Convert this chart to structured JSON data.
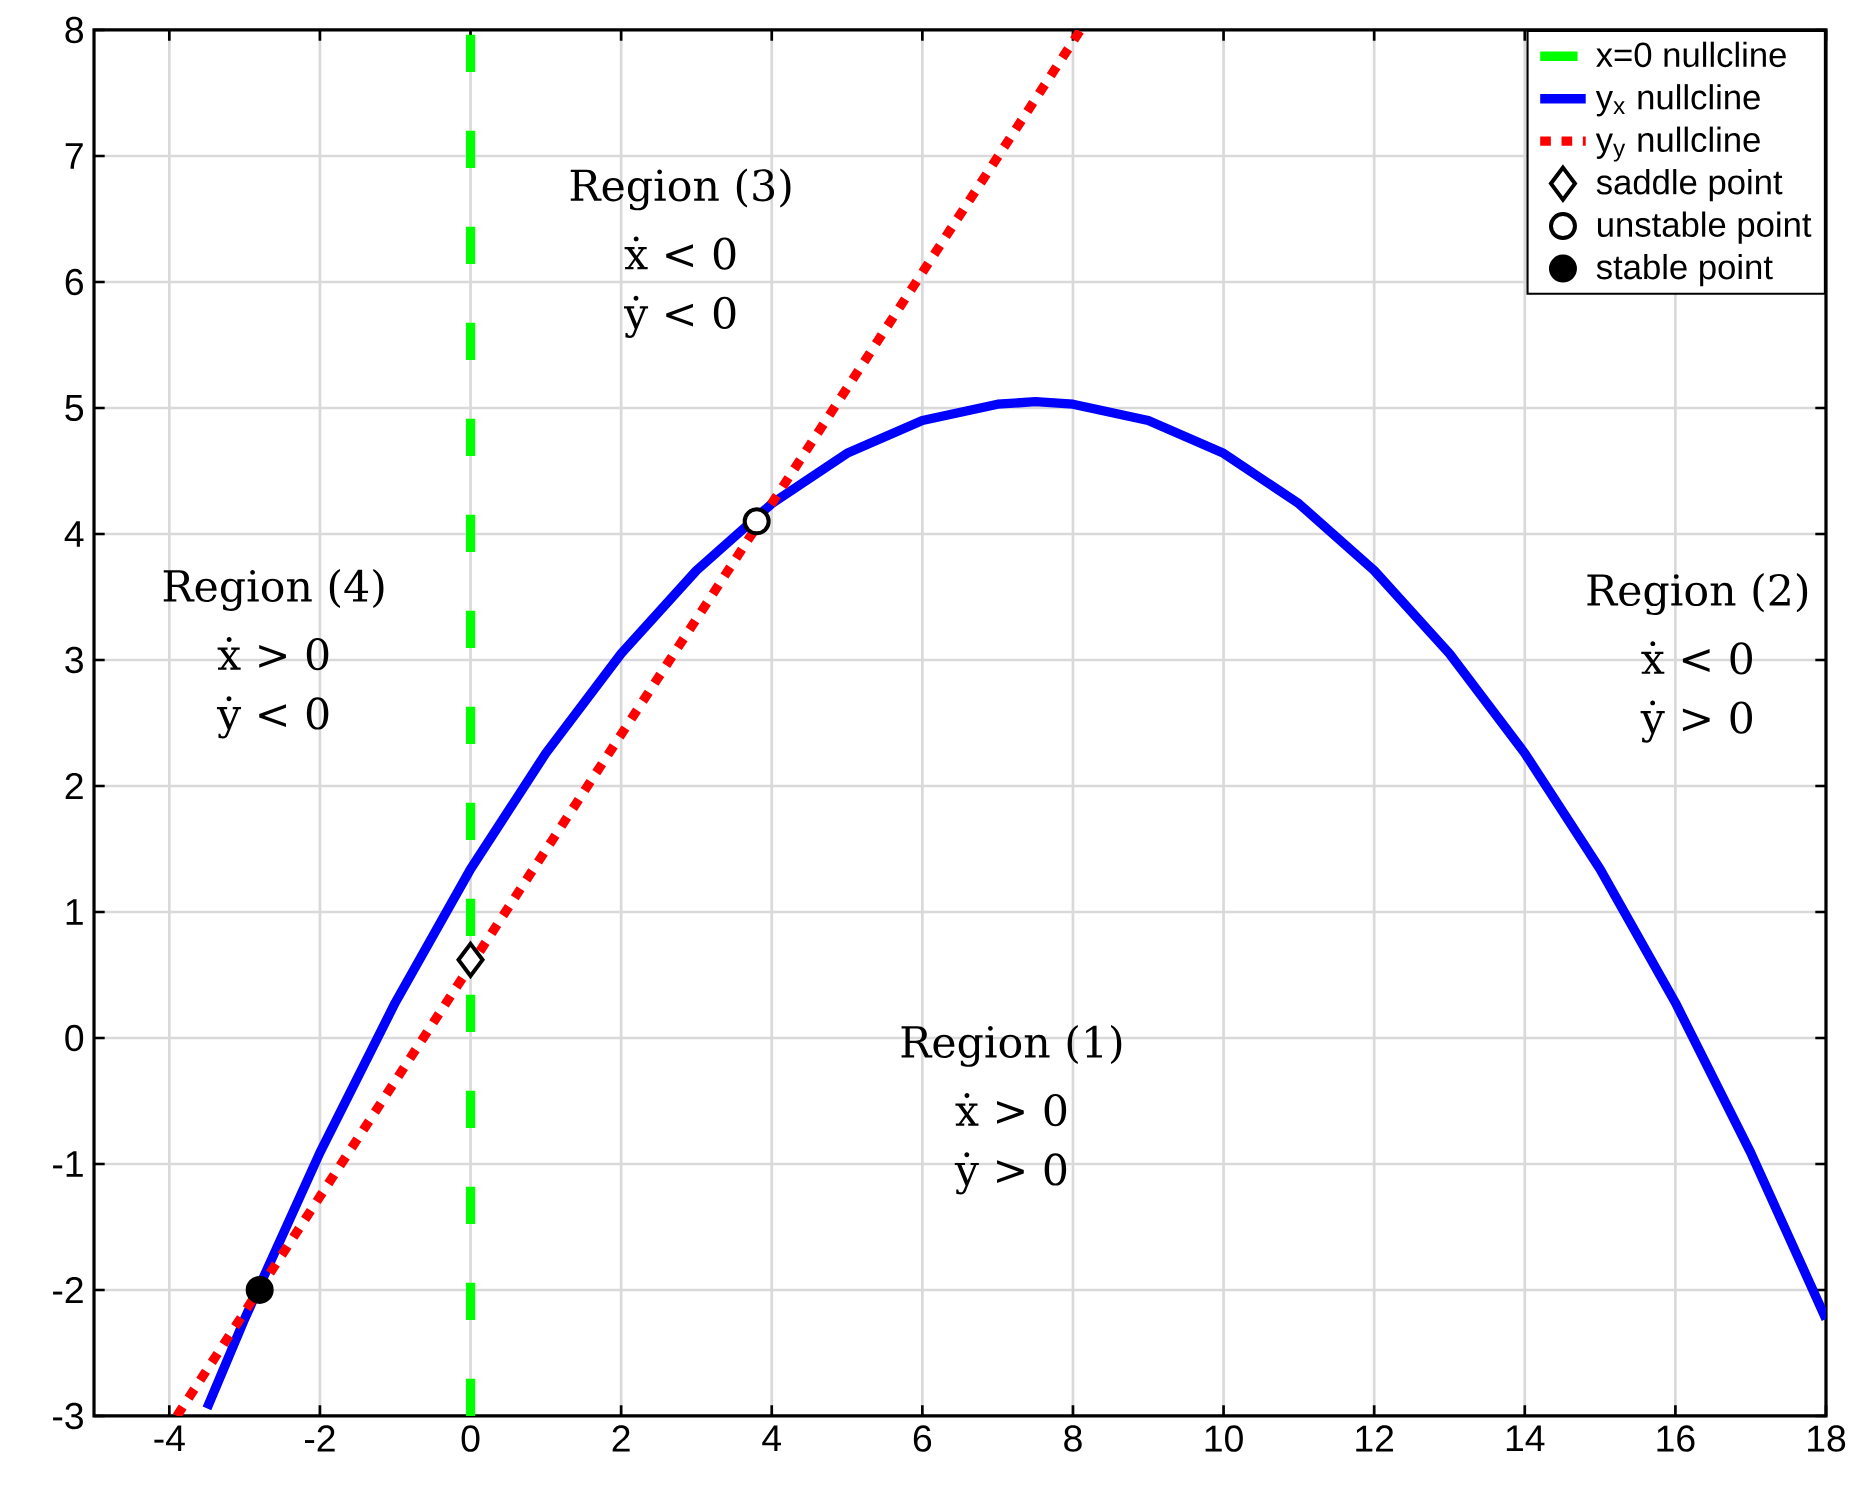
{
  "chart_data": {
    "type": "line",
    "xlim": [
      -5,
      18
    ],
    "ylim": [
      -3,
      8
    ],
    "xticks": [
      -4,
      -2,
      0,
      2,
      4,
      6,
      8,
      10,
      12,
      14,
      16,
      18
    ],
    "yticks": [
      -3,
      -2,
      -1,
      0,
      1,
      2,
      3,
      4,
      5,
      6,
      7,
      8
    ],
    "grid": true,
    "legend": "top right",
    "series": [
      {
        "name": "x=0 nullcline",
        "color": "#00ff00",
        "line_style": "dashed",
        "x": [
          0,
          0
        ],
        "values": [
          -3,
          8
        ]
      },
      {
        "name": "y$_{x}$ nullcline",
        "color": "#0000ff",
        "line_style": "solid",
        "x": [
          -3.5,
          -3,
          -2,
          -1,
          0,
          1,
          2,
          3,
          4,
          5,
          6,
          7,
          7.5,
          8,
          9,
          10,
          11,
          12,
          13,
          14,
          15,
          16,
          17,
          18
        ],
        "values": [
          -2.94,
          -2.23,
          -0.91,
          0.28,
          1.34,
          2.26,
          3.05,
          3.71,
          4.24,
          4.64,
          4.9,
          5.03,
          5.05,
          5.03,
          4.9,
          4.64,
          4.24,
          3.71,
          3.05,
          2.26,
          1.34,
          0.28,
          -0.91,
          -2.23
        ]
      },
      {
        "name": "y$_{y}$ nullcline",
        "color": "#ff0000",
        "line_style": "dotted",
        "x": [
          -3.9,
          8.1
        ],
        "values": [
          -3,
          8
        ]
      },
      {
        "name": "saddle point",
        "type": "scatter",
        "marker": "diamond",
        "color": "#ffffff",
        "x": [
          0
        ],
        "values": [
          0.62
        ]
      },
      {
        "name": "unstable point",
        "type": "scatter",
        "marker": "circle",
        "color": "#ffffff",
        "x": [
          3.8
        ],
        "values": [
          4.1
        ]
      },
      {
        "name": "stable point",
        "type": "scatter",
        "marker": "circle",
        "color": "#000000",
        "x": [
          -2.8
        ],
        "values": [
          -2
        ]
      }
    ],
    "annotations": [
      "Region (3)",
      "ẋ  < 0",
      "ẏ  < 0",
      "Region (4)",
      "ẋ  > 0",
      "ẏ  < 0",
      "Region (2)",
      "ẋ  < 0",
      "ẏ  > 0",
      "Region (1)",
      "ẋ  > 0",
      "ẏ  > 0"
    ]
  }
}
